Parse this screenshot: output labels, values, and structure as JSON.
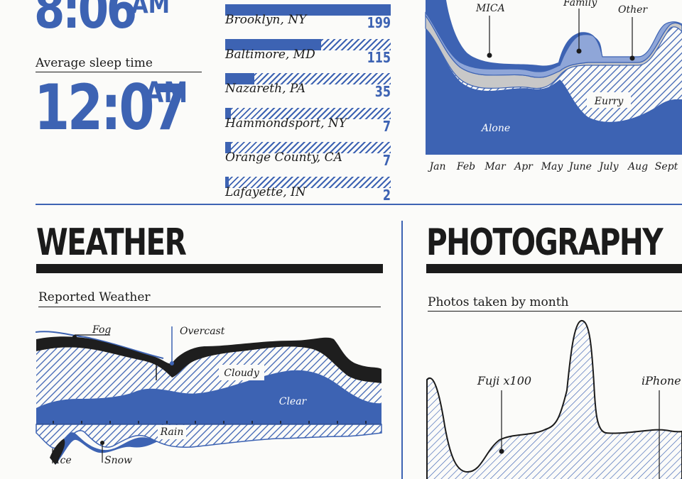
{
  "sleep": {
    "top_time": "8:06",
    "top_ampm": "AM",
    "avg_label": "Average sleep time",
    "avg_time": "12:07",
    "avg_ampm": "AM"
  },
  "locations": {
    "rows": [
      {
        "city": "Brooklyn, NY",
        "count": "199",
        "value": 199
      },
      {
        "city": "Baltimore, MD",
        "count": "115",
        "value": 115
      },
      {
        "city": "Nazareth, PA",
        "count": "35",
        "value": 35
      },
      {
        "city": "Hammondsport, NY",
        "count": "7",
        "value": 7
      },
      {
        "city": "Orange County, CA",
        "count": "7",
        "value": 7
      },
      {
        "city": "Lafayette, IN",
        "count": "2",
        "value": 2
      }
    ],
    "max": 199
  },
  "company": {
    "months": [
      "Jan",
      "Feb",
      "Mar",
      "Apr",
      "May",
      "June",
      "July",
      "Aug",
      "Sept"
    ],
    "labels": {
      "mica": "MICA",
      "family": "Family",
      "other": "Other",
      "eurry": "Eurry",
      "alone": "Alone"
    }
  },
  "weather": {
    "title": "WEATHER",
    "subtitle": "Reported Weather",
    "labels": {
      "fog": "Fog",
      "overcast": "Overcast",
      "cloudy": "Cloudy",
      "clear": "Clear",
      "rain": "Rain",
      "ice": "Ice",
      "snow": "Snow"
    }
  },
  "photography": {
    "title": "PHOTOGRAPHY",
    "subtitle": "Photos taken by month",
    "labels": {
      "fuji": "Fuji x100",
      "iphone": "iPhone"
    }
  },
  "colors": {
    "blue": "#3d63b3",
    "black": "#1e1e1e",
    "grey": "#c8c8c8",
    "light_blue": "#8fa6d8"
  },
  "chart_data": [
    {
      "type": "bar",
      "categories": [
        "Brooklyn, NY",
        "Baltimore, MD",
        "Nazareth, PA",
        "Hammondsport, NY",
        "Orange County, CA",
        "Lafayette, IN"
      ],
      "values": [
        199,
        115,
        35,
        7,
        7,
        2
      ]
    },
    {
      "type": "area",
      "categories": [
        "Jan",
        "Feb",
        "Mar",
        "Apr",
        "May",
        "June",
        "July",
        "Aug",
        "Sept"
      ],
      "series": [
        {
          "name": "Alone"
        },
        {
          "name": "Eurry"
        },
        {
          "name": "MICA"
        },
        {
          "name": "Family"
        },
        {
          "name": "Other"
        }
      ]
    },
    {
      "type": "area",
      "series": [
        {
          "name": "Fog"
        },
        {
          "name": "Overcast"
        },
        {
          "name": "Cloudy"
        },
        {
          "name": "Clear"
        },
        {
          "name": "Rain"
        },
        {
          "name": "Ice"
        },
        {
          "name": "Snow"
        }
      ]
    },
    {
      "type": "area",
      "series": [
        {
          "name": "Fuji x100"
        },
        {
          "name": "iPhone"
        }
      ]
    }
  ]
}
